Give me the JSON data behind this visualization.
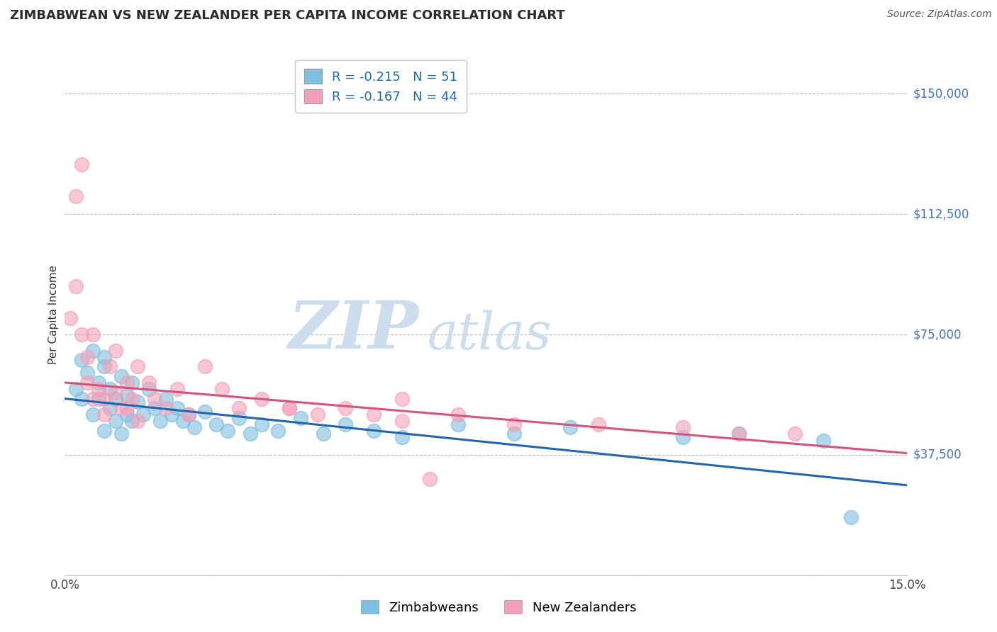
{
  "title": "ZIMBABWEAN VS NEW ZEALANDER PER CAPITA INCOME CORRELATION CHART",
  "source": "Source: ZipAtlas.com",
  "ylabel": "Per Capita Income",
  "xlim": [
    0.0,
    0.15
  ],
  "ylim": [
    0,
    162500
  ],
  "xtick_vals": [
    0.0,
    0.05,
    0.1,
    0.15
  ],
  "xtick_labels": [
    "0.0%",
    "",
    "",
    "15.0%"
  ],
  "ytick_vals": [
    0,
    37500,
    75000,
    112500,
    150000
  ],
  "ytick_labels": [
    "",
    "$37,500",
    "$75,000",
    "$112,500",
    "$150,000"
  ],
  "blue_color": "#7fbfdf",
  "pink_color": "#f5a0b8",
  "trend_blue": "#2166ac",
  "trend_pink": "#d4547a",
  "r_blue": -0.215,
  "n_blue": 51,
  "r_pink": -0.167,
  "n_pink": 44,
  "watermark_zip": "ZIP",
  "watermark_atlas": "atlas",
  "watermark_color": "#ccdded",
  "grid_color": "#bbbbbb",
  "label_color": "#4472c4",
  "title_color": "#2c2c2c",
  "blue_x": [
    0.002,
    0.003,
    0.003,
    0.004,
    0.005,
    0.005,
    0.006,
    0.006,
    0.007,
    0.007,
    0.007,
    0.008,
    0.008,
    0.009,
    0.009,
    0.01,
    0.01,
    0.011,
    0.011,
    0.012,
    0.012,
    0.013,
    0.014,
    0.015,
    0.016,
    0.017,
    0.018,
    0.019,
    0.02,
    0.021,
    0.022,
    0.023,
    0.025,
    0.027,
    0.029,
    0.031,
    0.033,
    0.035,
    0.038,
    0.042,
    0.046,
    0.05,
    0.055,
    0.06,
    0.07,
    0.08,
    0.09,
    0.11,
    0.12,
    0.135,
    0.14
  ],
  "blue_y": [
    58000,
    67000,
    55000,
    63000,
    70000,
    50000,
    60000,
    55000,
    65000,
    68000,
    45000,
    52000,
    58000,
    48000,
    55000,
    62000,
    44000,
    50000,
    56000,
    48000,
    60000,
    54000,
    50000,
    58000,
    52000,
    48000,
    55000,
    50000,
    52000,
    48000,
    50000,
    46000,
    51000,
    47000,
    45000,
    49000,
    44000,
    47000,
    45000,
    49000,
    44000,
    47000,
    45000,
    43000,
    47000,
    44000,
    46000,
    43000,
    44000,
    42000,
    18000
  ],
  "pink_x": [
    0.001,
    0.002,
    0.003,
    0.004,
    0.004,
    0.005,
    0.006,
    0.007,
    0.008,
    0.009,
    0.01,
    0.011,
    0.012,
    0.013,
    0.015,
    0.016,
    0.018,
    0.02,
    0.022,
    0.025,
    0.028,
    0.031,
    0.035,
    0.04,
    0.045,
    0.05,
    0.055,
    0.06,
    0.07,
    0.08,
    0.095,
    0.11,
    0.12,
    0.13,
    0.002,
    0.003,
    0.005,
    0.007,
    0.009,
    0.011,
    0.013,
    0.04,
    0.06,
    0.065
  ],
  "pink_y": [
    80000,
    90000,
    128000,
    60000,
    68000,
    75000,
    58000,
    55000,
    65000,
    70000,
    52000,
    60000,
    55000,
    65000,
    60000,
    55000,
    52000,
    58000,
    50000,
    65000,
    58000,
    52000,
    55000,
    52000,
    50000,
    52000,
    50000,
    48000,
    50000,
    47000,
    47000,
    46000,
    44000,
    44000,
    118000,
    75000,
    55000,
    50000,
    57000,
    52000,
    48000,
    52000,
    55000,
    30000
  ],
  "blue_trend_x": [
    0.0,
    0.15
  ],
  "blue_trend_y": [
    55000,
    28000
  ],
  "pink_trend_x": [
    0.0,
    0.15
  ],
  "pink_trend_y": [
    60000,
    38000
  ]
}
